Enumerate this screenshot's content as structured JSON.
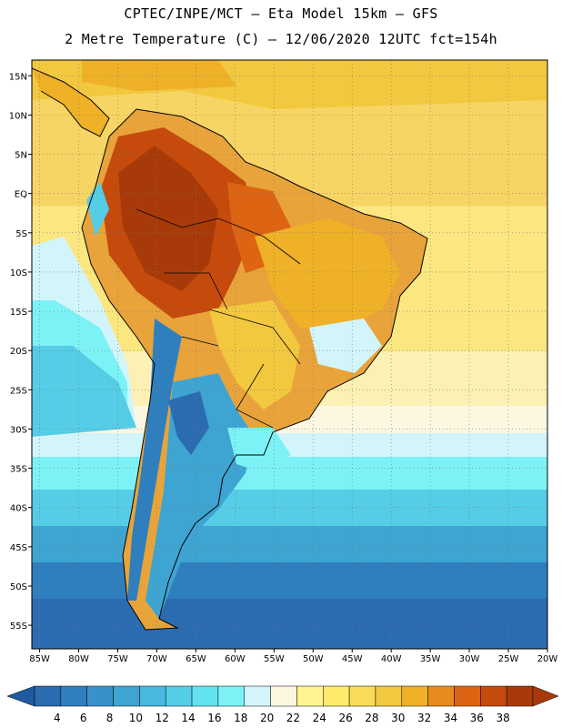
{
  "header": {
    "line1": "CPTEC/INPE/MCT –  Eta Model 15km – GFS",
    "line2": "2 Metre Temperature (C) – 12/06/2020 12UTC fct=154h"
  },
  "map": {
    "lat_labels": [
      "15N",
      "10N",
      "5N",
      "EQ",
      "5S",
      "10S",
      "15S",
      "20S",
      "25S",
      "30S",
      "35S",
      "40S",
      "45S",
      "50S",
      "55S"
    ],
    "lat_values": [
      15,
      10,
      5,
      0,
      -5,
      -10,
      -15,
      -20,
      -25,
      -30,
      -35,
      -40,
      -45,
      -50,
      -55
    ],
    "lon_labels": [
      "85W",
      "80W",
      "75W",
      "70W",
      "65W",
      "60W",
      "55W",
      "50W",
      "45W",
      "40W",
      "35W",
      "30W",
      "25W",
      "20W"
    ],
    "lon_values": [
      -85,
      -80,
      -75,
      -70,
      -65,
      -60,
      -55,
      -50,
      -45,
      -40,
      -35,
      -30,
      -25,
      -20
    ],
    "lat_range": [
      -58,
      17
    ],
    "lon_range": [
      -86,
      -20
    ]
  },
  "colorbar": {
    "labels": [
      "4",
      "6",
      "8",
      "10",
      "12",
      "14",
      "16",
      "18",
      "20",
      "22",
      "24",
      "26",
      "28",
      "30",
      "32",
      "34",
      "36",
      "38"
    ],
    "colors": [
      "#2b6cb0",
      "#2f7fbf",
      "#3a90c8",
      "#3ea4d2",
      "#48b8de",
      "#55cde6",
      "#62e2ef",
      "#7cf2f6",
      "#d2f5fb",
      "#fdf7e2",
      "#fff490",
      "#fde96a",
      "#f8dc58",
      "#f2c83e",
      "#eeb127",
      "#e88a1c",
      "#dc6412",
      "#c54a0c",
      "#a83a09"
    ],
    "min_arrow_color": "#1f5aa0",
    "max_arrow_color": "#a83a09"
  }
}
